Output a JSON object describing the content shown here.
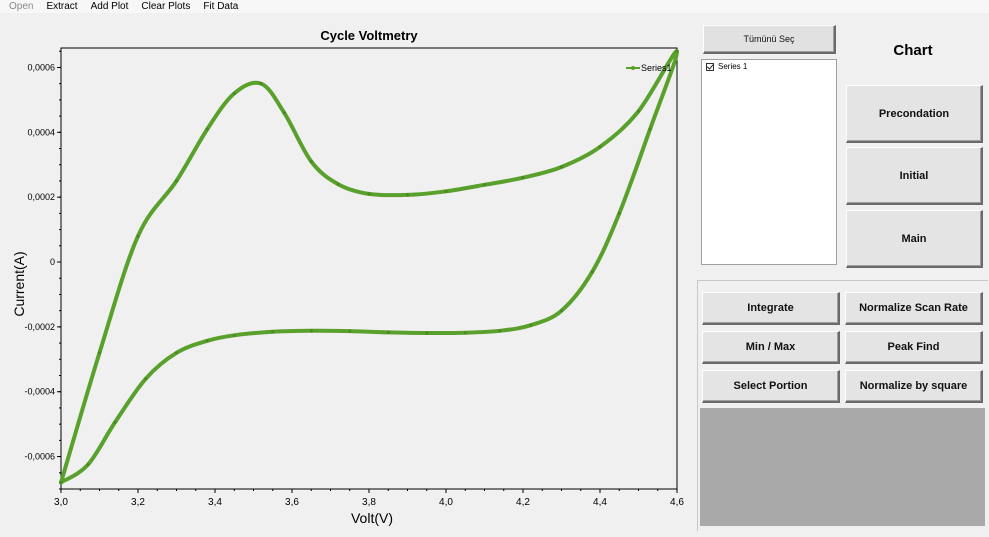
{
  "menu": {
    "items": [
      {
        "label": "Open",
        "disabled": true
      },
      {
        "label": "Extract",
        "disabled": false
      },
      {
        "label": "Add Plot",
        "disabled": false
      },
      {
        "label": "Clear Plots",
        "disabled": false
      },
      {
        "label": "Fit Data",
        "disabled": false
      }
    ]
  },
  "side": {
    "select_all_label": "Tümünü Seç",
    "series_list": [
      {
        "label": "Series 1",
        "checked": true
      }
    ],
    "chart_title_label": "Chart",
    "buttons": {
      "precondation": "Precondation",
      "initial": "Initial",
      "main": "Main"
    },
    "tools": {
      "integrate": "Integrate",
      "normalize_scan_rate": "Normalize Scan Rate",
      "min_max": "Min / Max",
      "peak_find": "Peak Find",
      "select_portion": "Select Portion",
      "normalize_by_square": "Normalize by square"
    }
  },
  "chart_data": {
    "type": "line",
    "title": "Cycle Voltmetry",
    "xlabel": "Volt(V)",
    "ylabel": "Current(A)",
    "xlim": [
      3.0,
      4.6
    ],
    "ylim": [
      -0.0007,
      0.00066
    ],
    "x_ticks": [
      "3,0",
      "3,2",
      "3,4",
      "3,6",
      "3,8",
      "4,0",
      "4,2",
      "4,4",
      "4,6"
    ],
    "y_ticks": [
      "0,0006",
      "0,0004",
      "0,0002",
      "0",
      "-0,0002",
      "-0,0004",
      "-0,0006"
    ],
    "legend_position": "top-right",
    "colors": {
      "series": "#5aa02c",
      "plot_bg": "#f0f0f0"
    },
    "series": [
      {
        "name": "Series1",
        "x": [
          3.0,
          3.1,
          3.2,
          3.3,
          3.38,
          3.45,
          3.52,
          3.58,
          3.65,
          3.72,
          3.8,
          3.9,
          4.0,
          4.1,
          4.2,
          4.3,
          4.4,
          4.5,
          4.6,
          4.53,
          4.45,
          4.38,
          4.3,
          4.22,
          4.14,
          4.05,
          3.95,
          3.85,
          3.75,
          3.65,
          3.55,
          3.45,
          3.38,
          3.3,
          3.22,
          3.14,
          3.07,
          3.0
        ],
        "y": [
          -0.00068,
          -0.00028,
          8e-05,
          0.00025,
          0.00041,
          0.00052,
          0.00055,
          0.00046,
          0.00031,
          0.00024,
          0.00021,
          0.000207,
          0.000218,
          0.000238,
          0.00026,
          0.000293,
          0.000355,
          0.000465,
          0.00065,
          0.00041,
          0.00015,
          -3e-05,
          -0.00015,
          -0.000195,
          -0.000212,
          -0.000218,
          -0.000219,
          -0.000217,
          -0.000213,
          -0.000212,
          -0.000215,
          -0.000226,
          -0.000243,
          -0.00028,
          -0.00036,
          -0.000495,
          -0.000625,
          -0.00068
        ]
      }
    ]
  }
}
